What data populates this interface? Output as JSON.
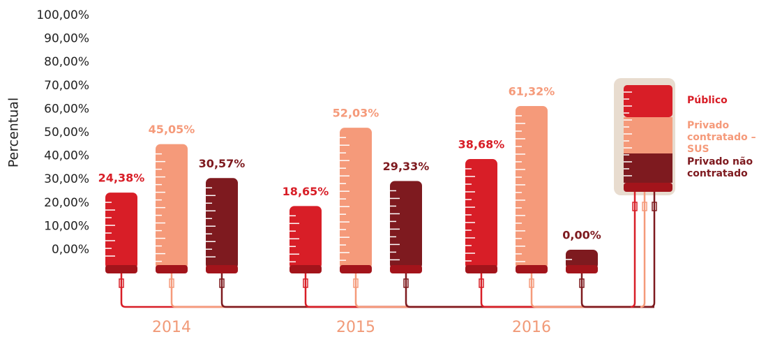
{
  "chart_data": {
    "type": "bar",
    "y_label": "Percentual",
    "categories": [
      "2014",
      "2015",
      "2016"
    ],
    "series": [
      {
        "name": "Público",
        "color": "#d81e27",
        "values": [
          24.38,
          18.65,
          38.68
        ],
        "value_labels": [
          "24,38%",
          "18,65%",
          "38,68%"
        ]
      },
      {
        "name": "Privado contratado – SUS",
        "color": "#f59a7a",
        "values": [
          45.05,
          52.03,
          61.32
        ],
        "value_labels": [
          "45,05%",
          "52,03%",
          "61,32%"
        ]
      },
      {
        "name": "Privado não contratado",
        "color": "#7e1a1f",
        "values": [
          30.57,
          29.33,
          0
        ],
        "value_labels": [
          "30,57%",
          "29,33%",
          "0,00%"
        ]
      }
    ],
    "ylim": [
      0,
      100
    ],
    "yticks": [
      {
        "value": 0,
        "label": "0,00%"
      },
      {
        "value": 10,
        "label": "10,00%"
      },
      {
        "value": 20,
        "label": "20,00%"
      },
      {
        "value": 30,
        "label": "30,00%"
      },
      {
        "value": 40,
        "label": "40,00%"
      },
      {
        "value": 50,
        "label": "50,00%"
      },
      {
        "value": 60,
        "label": "60,00%"
      },
      {
        "value": 70,
        "label": "70,00%"
      },
      {
        "value": 80,
        "label": "80,00%"
      },
      {
        "value": 90,
        "label": "90,00%"
      },
      {
        "value": 100,
        "label": "100,00%"
      }
    ],
    "legend": "right"
  }
}
